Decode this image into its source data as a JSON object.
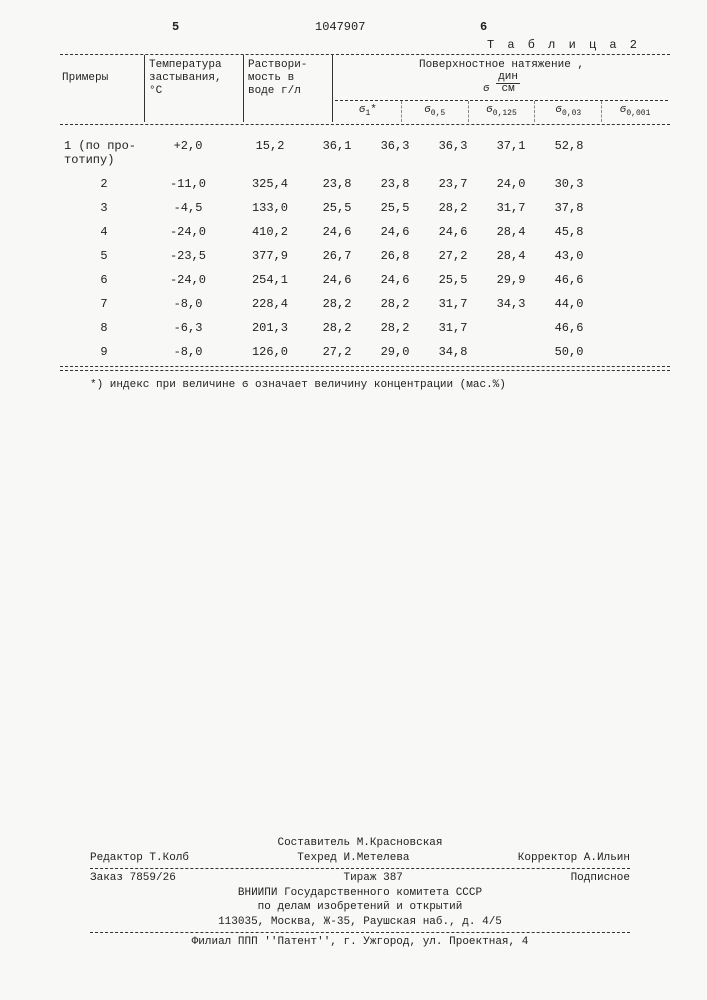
{
  "page": {
    "leftNum": "5",
    "centerNum": "1047907",
    "rightNum": "6",
    "tableLabel": "Т а б л и ц а  2"
  },
  "table": {
    "headers": {
      "col1": "Примеры",
      "col2a": "Температура",
      "col2b": "застывания,",
      "col2c": "°С",
      "col3a": "Раствори-",
      "col3b": "мость в",
      "col3c": "воде г/л",
      "col4a": "Поверхностное натяжение ,",
      "col4b_top": "дин",
      "col4b_bot": "см",
      "sub1": "1",
      "sub2": "0,5",
      "sub3": "0,125",
      "sub4": "0,03",
      "sub5": "0,001",
      "sigmaStar": "*"
    },
    "rows": [
      {
        "ex": "1 (по про-\nтотипу)",
        "t": "+2,0",
        "s": "15,2",
        "v1": "36,1",
        "v2": "36,3",
        "v3": "36,3",
        "v4": "37,1",
        "v5": "52,8"
      },
      {
        "ex": "2",
        "t": "-11,0",
        "s": "325,4",
        "v1": "23,8",
        "v2": "23,8",
        "v3": "23,7",
        "v4": "24,0",
        "v5": "30,3"
      },
      {
        "ex": "3",
        "t": "-4,5",
        "s": "133,0",
        "v1": "25,5",
        "v2": "25,5",
        "v3": "28,2",
        "v4": "31,7",
        "v5": "37,8"
      },
      {
        "ex": "4",
        "t": "-24,0",
        "s": "410,2",
        "v1": "24,6",
        "v2": "24,6",
        "v3": "24,6",
        "v4": "28,4",
        "v5": "45,8"
      },
      {
        "ex": "5",
        "t": "-23,5",
        "s": "377,9",
        "v1": "26,7",
        "v2": "26,8",
        "v3": "27,2",
        "v4": "28,4",
        "v5": "43,0"
      },
      {
        "ex": "6",
        "t": "-24,0",
        "s": "254,1",
        "v1": "24,6",
        "v2": "24,6",
        "v3": "25,5",
        "v4": "29,9",
        "v5": "46,6"
      },
      {
        "ex": "7",
        "t": "-8,0",
        "s": "228,4",
        "v1": "28,2",
        "v2": "28,2",
        "v3": "31,7",
        "v4": "34,3",
        "v5": "44,0"
      },
      {
        "ex": "8",
        "t": "-6,3",
        "s": "201,3",
        "v1": "28,2",
        "v2": "28,2",
        "v3": "31,7",
        "v4": "",
        "v5": "46,6"
      },
      {
        "ex": "9",
        "t": "-8,0",
        "s": "126,0",
        "v1": "27,2",
        "v2": "29,0",
        "v3": "34,8",
        "v4": "",
        "v5": "50,0"
      }
    ],
    "note": "*) индекс при величине ϭ означает величину концентрации (мас.%)"
  },
  "footer": {
    "composer": "Составитель М.Красновская",
    "editor": "Редактор Т.Колб",
    "tech": "Техред И.Метелева",
    "corrector": "Корректор А.Ильин",
    "order": "Заказ 7859/26",
    "edition": "Тираж 387",
    "sign": "Подписное",
    "org1": "ВНИИПИ Государственного комитета СССР",
    "org2": "по делам изобретений и открытий",
    "addr1": "113035, Москва, Ж-35, Раушская наб., д. 4/5",
    "branch": "Филиал ППП ''Патент'', г. Ужгород, ул. Проектная, 4"
  }
}
